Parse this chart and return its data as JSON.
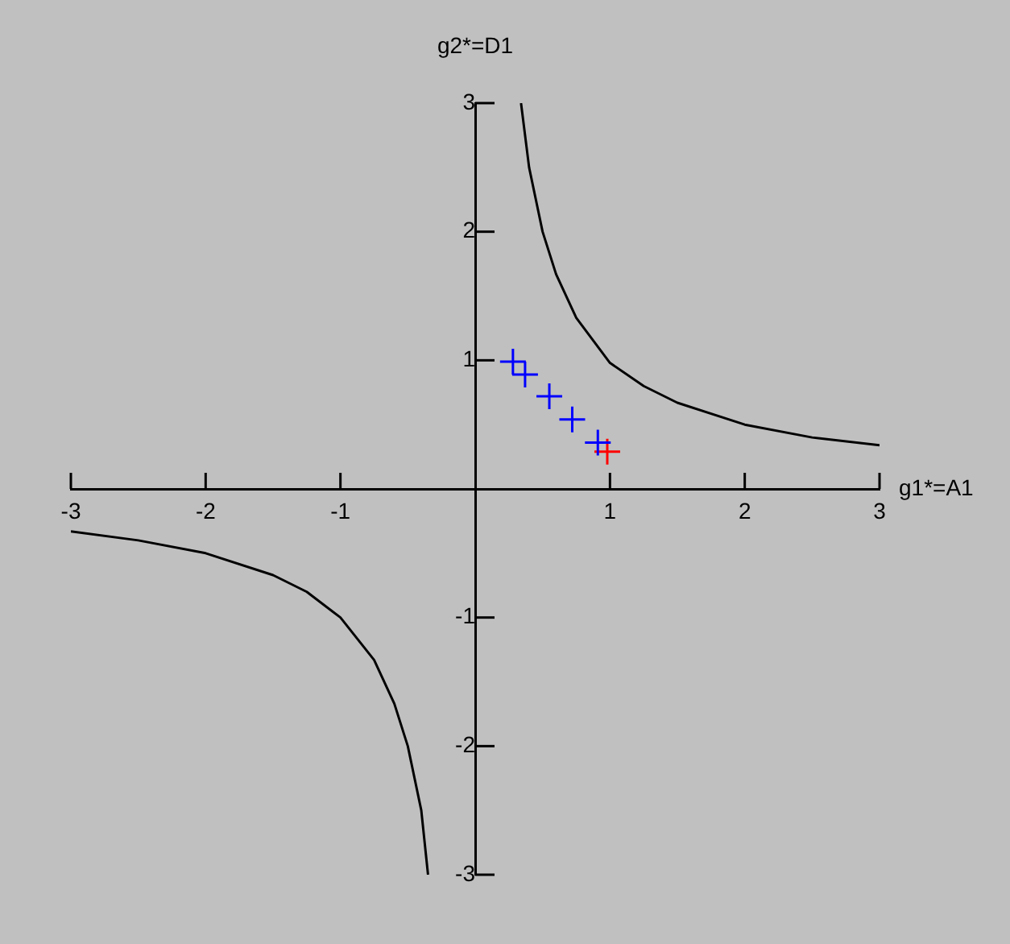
{
  "chart_data": {
    "type": "scatter",
    "xlabel": "g1*=A1",
    "ylabel": "g2*=D1",
    "xlim": [
      -3,
      3
    ],
    "ylim": [
      -3,
      3
    ],
    "xticks": [
      -3,
      -2,
      -1,
      1,
      2,
      3
    ],
    "yticks": [
      -3,
      -2,
      -1,
      1,
      2,
      3
    ],
    "grid": false,
    "legend": false,
    "series": [
      {
        "type": "line",
        "color": "#000000",
        "marker": "none",
        "x": [
          0.34,
          0.4,
          0.5,
          0.6,
          0.75,
          1,
          1.25,
          1.5,
          2,
          2.5,
          3
        ],
        "values": [
          3,
          2.5,
          2,
          1.67,
          1.33,
          0.98,
          0.8,
          0.67,
          0.5,
          0.4,
          0.34
        ]
      },
      {
        "type": "line",
        "color": "#000000",
        "marker": "none",
        "x": [
          -3,
          -2.5,
          -2,
          -1.5,
          -1.25,
          -1,
          -0.75,
          -0.6,
          -0.5,
          -0.4,
          -0.35
        ],
        "values": [
          -0.33,
          -0.4,
          -0.5,
          -0.67,
          -0.8,
          -1,
          -1.33,
          -1.67,
          -2,
          -2.5,
          -3
        ]
      },
      {
        "type": "scatter",
        "color": "#0000ff",
        "marker": "cross",
        "x": [
          0.28,
          0.37,
          0.55,
          0.72,
          0.91
        ],
        "values": [
          0.99,
          0.89,
          0.72,
          0.54,
          0.36
        ]
      },
      {
        "type": "scatter",
        "color": "#ff0000",
        "marker": "cross",
        "x": [
          0.98
        ],
        "values": [
          0.29
        ]
      }
    ]
  }
}
